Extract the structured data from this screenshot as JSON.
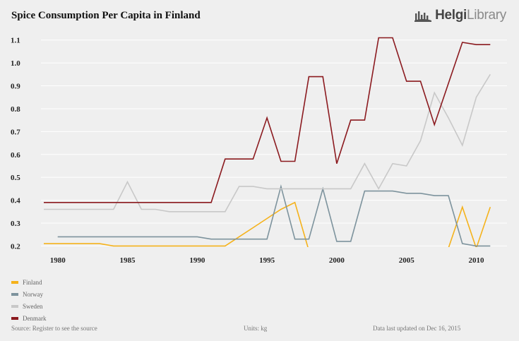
{
  "header": {
    "title": "Spice Consumption Per Capita in Finland"
  },
  "brand": {
    "name_bold": "Helgi",
    "name_light": "Library",
    "icon": "helgi-library-logo-icon"
  },
  "chart_data": {
    "type": "line",
    "title": "Spice Consumption Per Capita in Finland",
    "xlabel": "",
    "ylabel": "",
    "units": "kg",
    "xlim": [
      1978.8,
      2012.2
    ],
    "ylim": [
      0.195,
      1.13
    ],
    "x_ticks": [
      1980,
      1985,
      1990,
      1995,
      2000,
      2005,
      2010
    ],
    "y_ticks": [
      0.2,
      0.3,
      0.4,
      0.5,
      0.6,
      0.7,
      0.8,
      0.9,
      1.0,
      1.1
    ],
    "y_tick_labels": [
      "0.2",
      "0.3",
      "0.4",
      "0.5",
      "0.6",
      "0.7",
      "0.8",
      "0.9",
      "1.0",
      "1.1"
    ],
    "grid": true,
    "series": [
      {
        "name": "Finland",
        "color": "#f5b21b",
        "points": [
          [
            1979,
            0.21
          ],
          [
            1980,
            0.21
          ],
          [
            1981,
            0.21
          ],
          [
            1982,
            0.21
          ],
          [
            1983,
            0.21
          ],
          [
            1984,
            0.2
          ],
          [
            1985,
            0.2
          ],
          [
            1986,
            0.2
          ],
          [
            1987,
            0.2
          ],
          [
            1988,
            0.2
          ],
          [
            1989,
            0.2
          ],
          [
            1990,
            0.2
          ],
          [
            1991,
            0.2
          ],
          [
            1992,
            0.2
          ],
          [
            1993,
            0.24
          ],
          [
            1994,
            0.28
          ],
          [
            1995,
            0.32
          ],
          [
            1996,
            0.36
          ],
          [
            1997,
            0.39
          ],
          [
            1998,
            0.18
          ],
          [
            1999,
            null
          ],
          [
            2000,
            null
          ],
          [
            2001,
            null
          ],
          [
            2002,
            null
          ],
          [
            2003,
            null
          ],
          [
            2004,
            null
          ],
          [
            2005,
            null
          ],
          [
            2006,
            null
          ],
          [
            2007,
            null
          ],
          [
            2008,
            0.19
          ],
          [
            2009,
            0.37
          ],
          [
            2010,
            0.19
          ],
          [
            2011,
            0.37
          ]
        ]
      },
      {
        "name": "Norway",
        "color": "#7d939d",
        "points": [
          [
            1980,
            0.24
          ],
          [
            1981,
            0.24
          ],
          [
            1982,
            0.24
          ],
          [
            1983,
            0.24
          ],
          [
            1984,
            0.24
          ],
          [
            1985,
            0.24
          ],
          [
            1986,
            0.24
          ],
          [
            1987,
            0.24
          ],
          [
            1988,
            0.24
          ],
          [
            1989,
            0.24
          ],
          [
            1990,
            0.24
          ],
          [
            1991,
            0.23
          ],
          [
            1992,
            0.23
          ],
          [
            1993,
            0.23
          ],
          [
            1994,
            0.23
          ],
          [
            1995,
            0.23
          ],
          [
            1996,
            0.46
          ],
          [
            1997,
            0.23
          ],
          [
            1998,
            0.23
          ],
          [
            1999,
            0.45
          ],
          [
            2000,
            0.22
          ],
          [
            2001,
            0.22
          ],
          [
            2002,
            0.44
          ],
          [
            2003,
            0.44
          ],
          [
            2004,
            0.44
          ],
          [
            2005,
            0.43
          ],
          [
            2006,
            0.43
          ],
          [
            2007,
            0.42
          ],
          [
            2008,
            0.42
          ],
          [
            2009,
            0.21
          ],
          [
            2010,
            0.2
          ],
          [
            2011,
            0.2
          ]
        ]
      },
      {
        "name": "Sweden",
        "color": "#c8c8c8",
        "points": [
          [
            1979,
            0.36
          ],
          [
            1980,
            0.36
          ],
          [
            1981,
            0.36
          ],
          [
            1982,
            0.36
          ],
          [
            1983,
            0.36
          ],
          [
            1984,
            0.36
          ],
          [
            1985,
            0.48
          ],
          [
            1986,
            0.36
          ],
          [
            1987,
            0.36
          ],
          [
            1988,
            0.35
          ],
          [
            1989,
            0.35
          ],
          [
            1990,
            0.35
          ],
          [
            1991,
            0.35
          ],
          [
            1992,
            0.35
          ],
          [
            1993,
            0.46
          ],
          [
            1994,
            0.46
          ],
          [
            1995,
            0.45
          ],
          [
            1996,
            0.45
          ],
          [
            1997,
            0.45
          ],
          [
            1998,
            0.45
          ],
          [
            1999,
            0.45
          ],
          [
            2000,
            0.45
          ],
          [
            2001,
            0.45
          ],
          [
            2002,
            0.56
          ],
          [
            2003,
            0.45
          ],
          [
            2004,
            0.56
          ],
          [
            2005,
            0.55
          ],
          [
            2006,
            0.66
          ],
          [
            2007,
            0.87
          ],
          [
            2008,
            0.76
          ],
          [
            2009,
            0.64
          ],
          [
            2010,
            0.85
          ],
          [
            2011,
            0.95
          ]
        ]
      },
      {
        "name": "Denmark",
        "color": "#8b1a1f",
        "points": [
          [
            1979,
            0.39
          ],
          [
            1980,
            0.39
          ],
          [
            1981,
            0.39
          ],
          [
            1982,
            0.39
          ],
          [
            1983,
            0.39
          ],
          [
            1984,
            0.39
          ],
          [
            1985,
            0.39
          ],
          [
            1986,
            0.39
          ],
          [
            1987,
            0.39
          ],
          [
            1988,
            0.39
          ],
          [
            1989,
            0.39
          ],
          [
            1990,
            0.39
          ],
          [
            1991,
            0.39
          ],
          [
            1992,
            0.58
          ],
          [
            1993,
            0.58
          ],
          [
            1994,
            0.58
          ],
          [
            1995,
            0.76
          ],
          [
            1996,
            0.57
          ],
          [
            1997,
            0.57
          ],
          [
            1998,
            0.94
          ],
          [
            1999,
            0.94
          ],
          [
            2000,
            0.56
          ],
          [
            2001,
            0.75
          ],
          [
            2002,
            0.75
          ],
          [
            2003,
            1.11
          ],
          [
            2004,
            1.11
          ],
          [
            2005,
            0.92
          ],
          [
            2006,
            0.92
          ],
          [
            2007,
            0.73
          ],
          [
            2008,
            0.91
          ],
          [
            2009,
            1.09
          ],
          [
            2010,
            1.08
          ],
          [
            2011,
            1.08
          ]
        ]
      }
    ]
  },
  "footer": {
    "source": "Source: Register to see the source",
    "units": "Units: kg",
    "updated": "Data last updated on Dec 16, 2015"
  }
}
